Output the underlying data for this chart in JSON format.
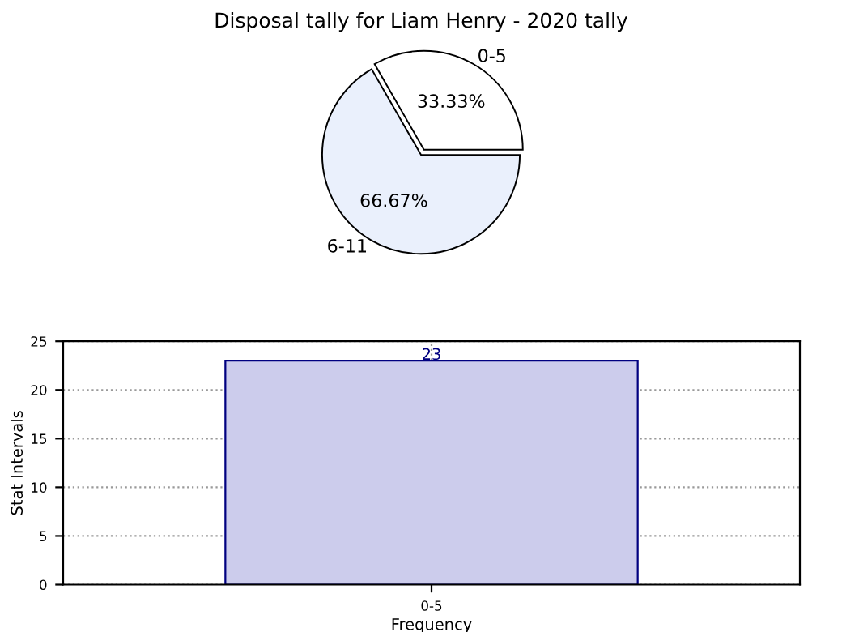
{
  "chart_data": [
    {
      "type": "pie",
      "title": "Disposal tally for Liam Henry - 2020 tally",
      "categories": [
        "0-5",
        "6-11"
      ],
      "values": [
        33.33,
        66.67
      ],
      "value_labels": [
        "33.33%",
        "66.67%"
      ],
      "colors": [
        "#ffffff",
        "#eaf0fc"
      ]
    },
    {
      "type": "bar",
      "categories": [
        "0-5"
      ],
      "values": [
        23
      ],
      "color": "#ccccec",
      "xlabel": "Frequency",
      "ylabel": "Stat Intervals",
      "ylim": [
        0,
        25
      ],
      "yticks": [
        0,
        5,
        10,
        15,
        20,
        25
      ],
      "grid": true,
      "data_labels": true
    }
  ]
}
